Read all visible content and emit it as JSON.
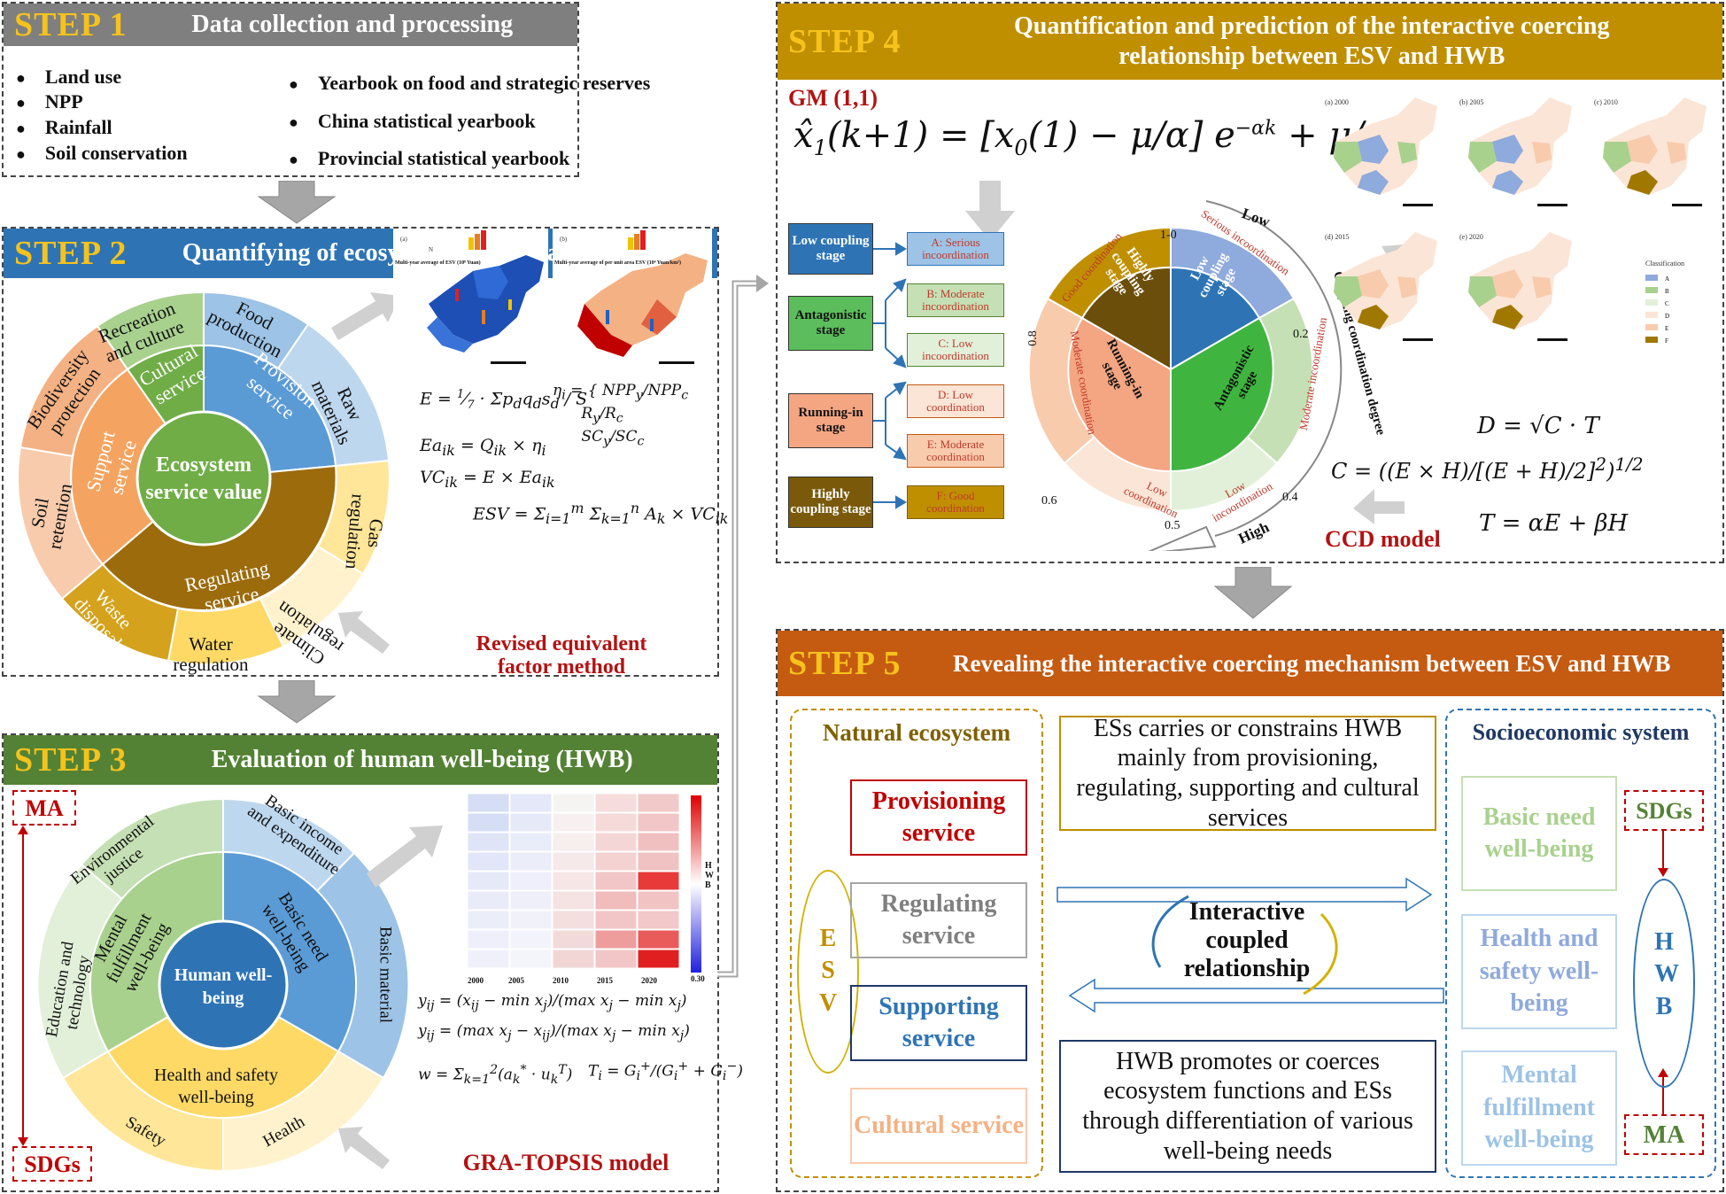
{
  "step1": {
    "step": "STEP 1",
    "title": "Data collection and processing",
    "left_items": [
      "Land use",
      "NPP",
      "Rainfall",
      "Soil conservation"
    ],
    "right_items": [
      "Yearbook on food and strategic reserves",
      "China statistical yearbook",
      "Provincial statistical yearbook"
    ]
  },
  "step2": {
    "step": "STEP 2",
    "title": "Quantifying of ecosystem service value (ESV)",
    "center": "Ecosystem service value",
    "inner": [
      "Provision service",
      "Regulating service",
      "Support service",
      "Cultural service"
    ],
    "outer": [
      "Food production",
      "Raw materials",
      "Gas regulation",
      "Climate regulation",
      "Water regulation",
      "Waste disposal",
      "Soil retention",
      "Biodiversity protection",
      "Recreation and culture"
    ],
    "method_line1": "Revised equivalent",
    "method_line2": "factor method",
    "map_a_caption": "Multi-year average of ESV (10⁸ Yuan)",
    "map_b_caption": "Multi-year average of per unit area ESV (10⁴ Yuan/km²)"
  },
  "step3": {
    "step": "STEP 3",
    "title": "Evaluation of human well-being (HWB)",
    "center": "Human well-being",
    "inner": [
      "Basic need well-being",
      "Health and safety well-being",
      "Mental fulfillment well-being"
    ],
    "outer": [
      "Basic income and expenditure",
      "Basic material",
      "Health",
      "Safety",
      "Education and technology",
      "Environmental justice"
    ],
    "ma": "MA",
    "sdgs": "SDGs",
    "method": "GRA-TOPSIS model",
    "heatmap_cols": [
      "2000",
      "2005",
      "2010",
      "2015",
      "2020"
    ],
    "heatmap_legend": "HWB",
    "heatmap_max": "0.30"
  },
  "step4": {
    "step": "STEP 4",
    "title_line1": "Quantification and prediction of the interactive coercing",
    "title_line2": "relationship between ESV and HWB",
    "gm": "GM (1,1)",
    "stages": [
      "Low coupling stage",
      "Antagonistic stage",
      "Running-in stage",
      "Highly coupling stage"
    ],
    "outcomes": [
      "A: Serious incoordination",
      "B: Moderate incoordination",
      "C: Low incoordination",
      "D: Low coordination",
      "E: Moderate coordination",
      "F: Good coordination"
    ],
    "ring_labels": [
      "Serious incoordination",
      "Moderate incoordination",
      "Low incoordination",
      "Low coordination",
      "Moderate coordination",
      "Good coordination"
    ],
    "ticks": [
      "1-0",
      "0.2",
      "0.4",
      "0.5",
      "0.6",
      "0.8"
    ],
    "arc_low": "Low",
    "arc_high": "High",
    "arc_label": "Coupling coordination degree",
    "ccd": "CCD model",
    "map_labels": [
      "(a) 2000",
      "(b) 2005",
      "(c) 2010",
      "(d) 2015",
      "(e) 2020"
    ],
    "legend_title": "Classification",
    "legend_items": [
      "A",
      "B",
      "C",
      "D",
      "E",
      "F"
    ]
  },
  "step5": {
    "step": "STEP 5",
    "title": "Revealing the interactive coercing mechanism between ESV and HWB",
    "natural": "Natural ecosystem",
    "socio": "Socioeconomic system",
    "services": [
      "Provisioning service",
      "Regulating service",
      "Supporting service",
      "Cultural service"
    ],
    "wellbeing": [
      "Basic need well-being",
      "Health and safety well-being",
      "Mental fulfillment well-being"
    ],
    "esv": "ESV",
    "hwb": "HWB",
    "sdgs": "SDGs",
    "ma": "MA",
    "top_text": "ESs carries or constrains HWB mainly from provisioning, regulating, supporting and cultural services",
    "mid_text": "Interactive coupled relationship",
    "bottom_text": "HWB promotes or coerces ecosystem functions and ESs through differentiation of various well-being needs"
  },
  "colors": {
    "step1_header": "#7f7f7f",
    "step2_header": "#2e74b5",
    "step3_header": "#548235",
    "step4_header": "#bf8f00",
    "step5_header": "#c55a11",
    "step_label": "#f6c21c",
    "red": "#b31212"
  }
}
